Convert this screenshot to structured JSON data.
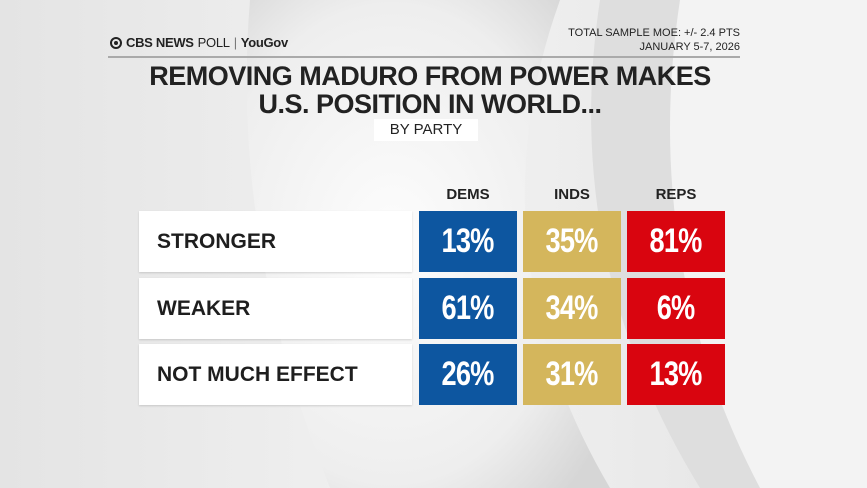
{
  "header": {
    "logo_text": "CBS NEWS",
    "logo_poll": "POLL",
    "logo_partner": "YouGov",
    "moe": "TOTAL SAMPLE MOE: +/- 2.4 PTS",
    "dates": "JANUARY 5-7, 2026"
  },
  "chart_data": {
    "type": "table",
    "title": "REMOVING MADURO FROM POWER MAKES U.S. POSITION IN WORLD...",
    "title_line1": "REMOVING MADURO FROM POWER MAKES",
    "title_line2": "U.S. POSITION IN WORLD...",
    "subtitle": "BY PARTY",
    "columns": [
      "DEMS",
      "INDS",
      "REPS"
    ],
    "column_colors": [
      "#0d56a0",
      "#d4b65c",
      "#d9050f"
    ],
    "rows": [
      {
        "label": "STRONGER",
        "values": [
          "13%",
          "35%",
          "81%"
        ]
      },
      {
        "label": "WEAKER",
        "values": [
          "61%",
          "34%",
          "6%"
        ]
      },
      {
        "label": "NOT MUCH EFFECT",
        "values": [
          "26%",
          "31%",
          "13%"
        ]
      }
    ]
  }
}
